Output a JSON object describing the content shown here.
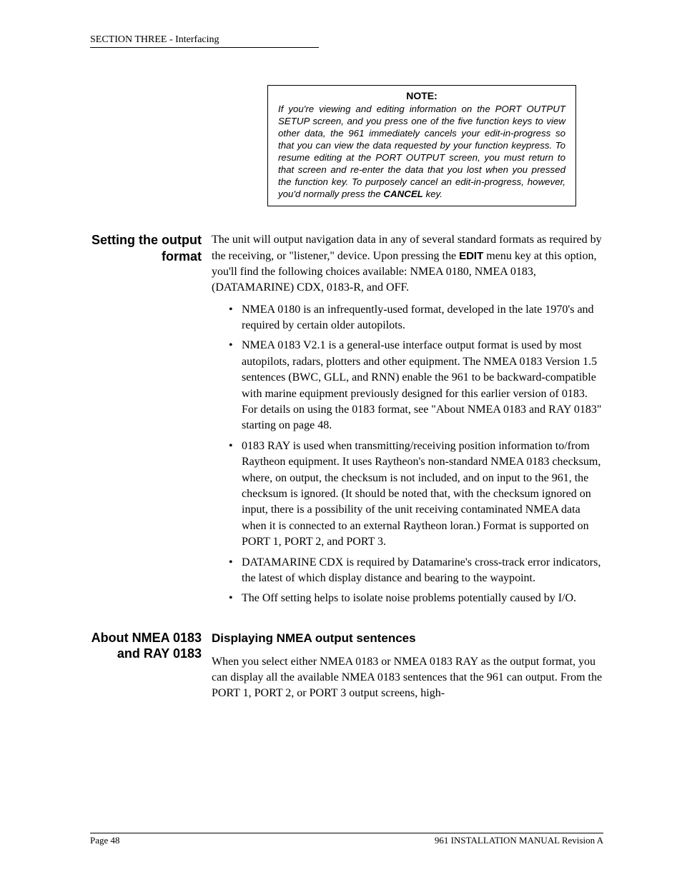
{
  "header": {
    "text": "SECTION THREE - Interfacing"
  },
  "note": {
    "title": "NOTE:",
    "body_html": "If you're viewing and editing information on the PORT OUTPUT SETUP screen, and you press one of the five function keys to view other data, the 961 immediately cancels your edit-in-progress so that you can view the data requested by your function keypress. To resume editing at the PORT OUTPUT screen, you must return to that screen and re-enter the data that you lost when you pressed the function key. To purposely cancel an edit-in-progress, however, you'd normally press the <span class=\"cancel\">CANCEL</span> key."
  },
  "section1": {
    "side": "Setting the output format",
    "intro_html": "The unit will output navigation data in any of several standard formats as required by the receiving, or \"listener,\" device. Upon pressing the <span class=\"edit-key\">EDIT</span> menu key at this option, you'll find the following choices available: NMEA 0180, NMEA 0183, (DATAMARINE) CDX, 0183-R, and OFF.",
    "bullets": [
      "NMEA 0180 is an infrequently-used format, developed in the late 1970's and required by certain older autopilots.",
      "NMEA 0183 V2.1 is a general-use interface output format is used by most autopilots, radars, plotters and other equipment. The NMEA 0183 Version 1.5 sentences (BWC, GLL, and RNN) enable the 961 to be backward-compatible with marine equipment previously designed for this earlier version of 0183. For details on using the 0183 format, see \"About NMEA 0183 and RAY 0183\" starting on page 48.",
      "0183 RAY is used when transmitting/receiving position information to/from Raytheon equipment. It uses Raytheon's non-standard NMEA 0183 checksum, where, on output, the checksum is not included, and on input to the 961, the checksum is ignored. (It should be noted that, with the checksum ignored on input, there is a possibility of the unit receiving contaminated NMEA data when it is connected to an external Raytheon loran.) Format is supported on PORT 1, PORT 2, and PORT 3.",
      "DATAMARINE CDX is required by Datamarine's cross-track error indicators, the latest of which display distance and bearing to the waypoint.",
      "The Off setting helps to isolate noise problems potentially caused by I/O."
    ]
  },
  "section2": {
    "side": "About NMEA 0183 and RAY 0183",
    "subhead": "Displaying NMEA output sentences",
    "body": "When you select either NMEA 0183 or NMEA 0183 RAY as the output format, you can display all the available NMEA 0183 sentences that the 961 can output. From the PORT 1, PORT 2, or PORT 3 output screens, high-"
  },
  "footer": {
    "left": "Page 48",
    "right": "961 INSTALLATION MANUAL Revision A"
  }
}
